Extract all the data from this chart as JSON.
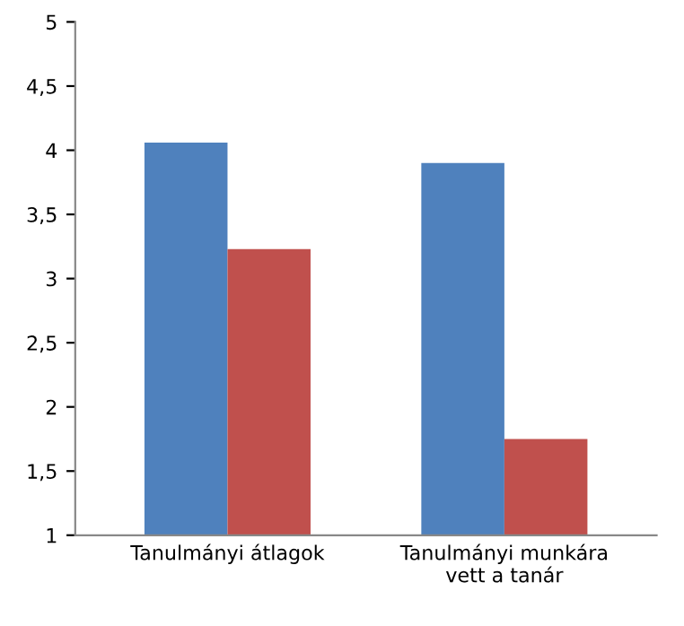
{
  "chart_data": {
    "type": "bar",
    "categories": [
      "Tanulmányi átlagok",
      "Tanulmányi munkára\nvett a tanár"
    ],
    "series": [
      {
        "color": "#4f81bd",
        "values": [
          4.06,
          3.9
        ]
      },
      {
        "color": "#c0504d",
        "values": [
          3.23,
          1.75
        ]
      }
    ],
    "ylim": [
      1,
      5
    ],
    "yticks": [
      1,
      {
        "value": 1.5,
        "label": "1,5"
      },
      2,
      {
        "value": 2.5,
        "label": "2,5"
      },
      3,
      {
        "value": 3.5,
        "label": "3,5"
      },
      4,
      {
        "value": 4.5,
        "label": "4,5"
      },
      5
    ],
    "grid": false,
    "legend": false
  }
}
